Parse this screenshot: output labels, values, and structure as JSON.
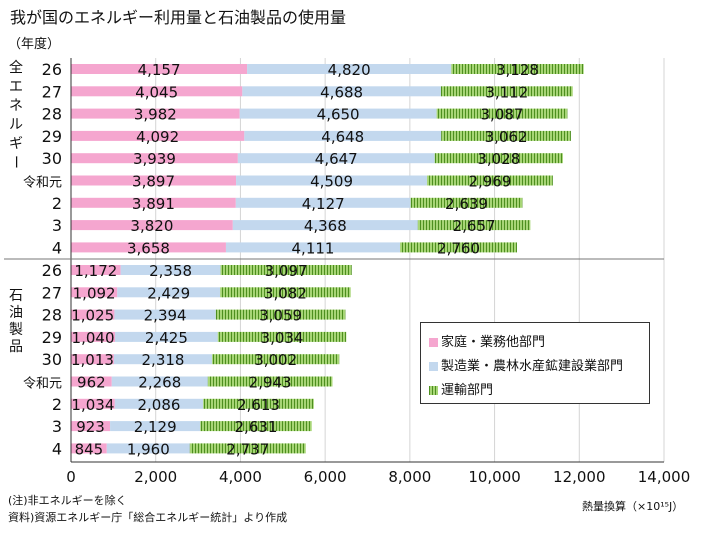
{
  "title": "我が国のエネルギー利用量と石油製品の使用量",
  "year_header": "（年度）",
  "note_lines": [
    "(注)非エネルギーを除く",
    "資料)資源エネルギー庁「総合エネルギー統計」より作成"
  ],
  "unit_label": "熱量換算（×10¹⁵J）",
  "colors": {
    "home": "#f5a6cf",
    "mfg": "#c3d8ee",
    "trans_dark": "#4d8f1f",
    "trans_light": "#a7d576",
    "grid": "#d4d4d4"
  },
  "legend": [
    "家庭・業務他部門",
    "製造業・農林水産鉱建設業部門",
    "運輸部門"
  ],
  "chart_data": [
    {
      "type": "bar",
      "orientation": "horizontal",
      "stacked": true,
      "group_label": "全エネルギー",
      "categories": [
        "26",
        "27",
        "28",
        "29",
        "30",
        "令和元",
        "2",
        "3",
        "4"
      ],
      "series": [
        {
          "name": "家庭・業務他部門",
          "values": [
            4157,
            4045,
            3982,
            4092,
            3939,
            3897,
            3891,
            3820,
            3658
          ],
          "labels": [
            "4,157",
            "4,045",
            "3,982",
            "4,092",
            "3,939",
            "3,897",
            "3,891",
            "3,820",
            "3,658"
          ]
        },
        {
          "name": "製造業・農林水産鉱建設業部門",
          "values": [
            4820,
            4688,
            4650,
            4648,
            4647,
            4509,
            4127,
            4368,
            4111
          ],
          "labels": [
            "4,820",
            "4,688",
            "4,650",
            "4,648",
            "4,647",
            "4,509",
            "4,127",
            "4,368",
            "4,111"
          ]
        },
        {
          "name": "運輸部門",
          "values": [
            3128,
            3112,
            3087,
            3062,
            3028,
            2969,
            2639,
            2657,
            2760
          ],
          "labels": [
            "3,128",
            "3,112",
            "3,087",
            "3,062",
            "3,028",
            "2,969",
            "2,639",
            "2,657",
            "2,760"
          ]
        }
      ]
    },
    {
      "type": "bar",
      "orientation": "horizontal",
      "stacked": true,
      "group_label": "石油製品",
      "categories": [
        "26",
        "27",
        "28",
        "29",
        "30",
        "令和元",
        "2",
        "3",
        "4"
      ],
      "series": [
        {
          "name": "家庭・業務他部門",
          "values": [
            1172,
            1092,
            1025,
            1040,
            1013,
            962,
            1034,
            923,
            845
          ],
          "labels": [
            "1,172",
            "1,092",
            "1,025",
            "1,040",
            "1,013",
            "962",
            "1,034",
            "923",
            "845"
          ]
        },
        {
          "name": "製造業・農林水産鉱建設業部門",
          "values": [
            2358,
            2429,
            2394,
            2425,
            2318,
            2268,
            2086,
            2129,
            1960
          ],
          "labels": [
            "2,358",
            "2,429",
            "2,394",
            "2,425",
            "2,318",
            "2,268",
            "2,086",
            "2,129",
            "1,960"
          ]
        },
        {
          "name": "運輸部門",
          "values": [
            3097,
            3082,
            3059,
            3034,
            3002,
            2943,
            2613,
            2631,
            2737
          ],
          "labels": [
            "3,097",
            "3,082",
            "3,059",
            "3,034",
            "3,002",
            "2,943",
            "2,613",
            "2,631",
            "2,737"
          ]
        }
      ]
    }
  ],
  "x_axis": {
    "min": 0,
    "max": 14000,
    "ticks": [
      "0",
      "2,000",
      "4,000",
      "6,000",
      "8,000",
      "10,000",
      "12,000",
      "14,000"
    ]
  }
}
